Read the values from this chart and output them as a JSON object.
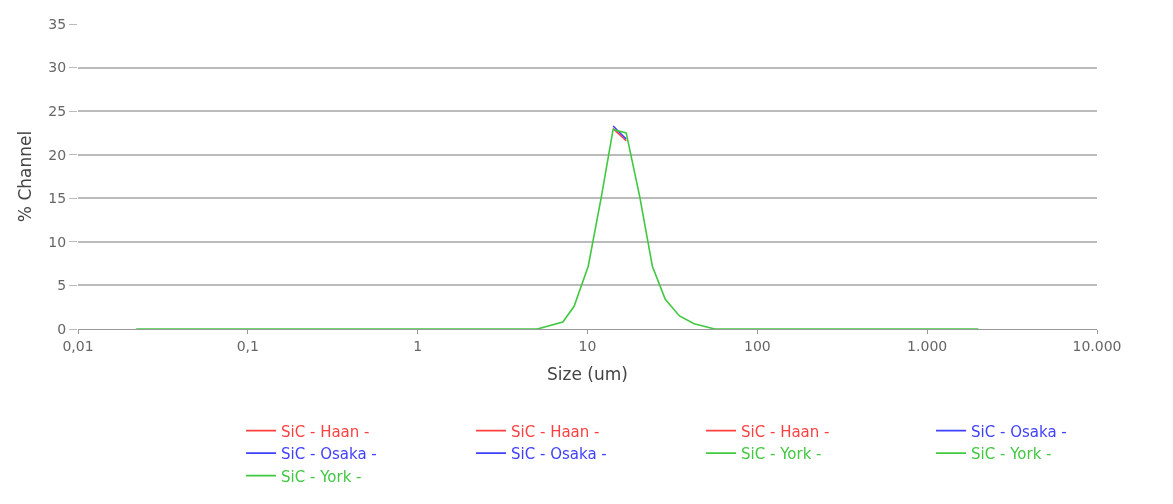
{
  "chart_data": {
    "type": "line",
    "xlabel": "Size (um)",
    "ylabel": "% Channel",
    "log": "x",
    "xlim": [
      0.01,
      10000
    ],
    "ylim": [
      0,
      35
    ],
    "xticks": [
      {
        "value": 0.01,
        "label": "0,01"
      },
      {
        "value": 0.1,
        "label": "0,1"
      },
      1,
      10,
      100,
      {
        "value": 1000,
        "label": "1.000"
      },
      {
        "value": 10000,
        "label": "10.000"
      }
    ],
    "yticks": [
      0,
      5,
      10,
      15,
      20,
      25,
      30,
      35
    ],
    "grid": "y",
    "legend": "bottom",
    "marker": "none",
    "line_style": "solid",
    "x": [
      0.022,
      5.06,
      7.16,
      8.34,
      10.1,
      12.05,
      14.15,
      16.9,
      20.3,
      24.1,
      28.7,
      34.8,
      42.4,
      56.2,
      2000
    ],
    "series": [
      {
        "name": "SiC - Haan -",
        "color": "#ff4040",
        "values": [
          null,
          null,
          null,
          null,
          null,
          null,
          23.0,
          21.6,
          null,
          null,
          null,
          null,
          null,
          null,
          null
        ]
      },
      {
        "name": "SiC - Haan -",
        "color": "#ff4040",
        "values": [
          null,
          null,
          null,
          null,
          null,
          null,
          null,
          null,
          null,
          null,
          null,
          null,
          null,
          null,
          null
        ]
      },
      {
        "name": "SiC - Haan -",
        "color": "#ff4040",
        "values": [
          null,
          null,
          null,
          null,
          null,
          null,
          null,
          null,
          null,
          null,
          null,
          null,
          null,
          null,
          null
        ]
      },
      {
        "name": "SiC - Osaka -",
        "color": "#4040ff",
        "values": [
          null,
          null,
          null,
          null,
          null,
          null,
          23.3,
          21.8,
          null,
          null,
          null,
          null,
          null,
          null,
          null
        ]
      },
      {
        "name": "SiC - Osaka -",
        "color": "#4040ff",
        "values": [
          null,
          null,
          null,
          null,
          null,
          null,
          null,
          null,
          null,
          null,
          null,
          null,
          null,
          null,
          null
        ]
      },
      {
        "name": "SiC - Osaka -",
        "color": "#4040ff",
        "values": [
          null,
          null,
          null,
          null,
          null,
          null,
          null,
          null,
          null,
          null,
          null,
          null,
          null,
          null,
          null
        ]
      },
      {
        "name": "SiC - York -",
        "color": "#40c840",
        "values": [
          0,
          0,
          0.8,
          2.6,
          7.2,
          15.1,
          22.9,
          22.5,
          15.2,
          7.2,
          3.4,
          1.5,
          0.6,
          0,
          0
        ]
      },
      {
        "name": "SiC - York -",
        "color": "#40c840",
        "values": [
          null,
          null,
          null,
          null,
          null,
          null,
          null,
          null,
          null,
          null,
          null,
          null,
          null,
          null,
          null
        ]
      },
      {
        "name": "SiC - York -",
        "color": "#40c840",
        "values": [
          null,
          null,
          null,
          null,
          null,
          null,
          null,
          null,
          null,
          null,
          null,
          null,
          null,
          null,
          null
        ]
      }
    ]
  }
}
